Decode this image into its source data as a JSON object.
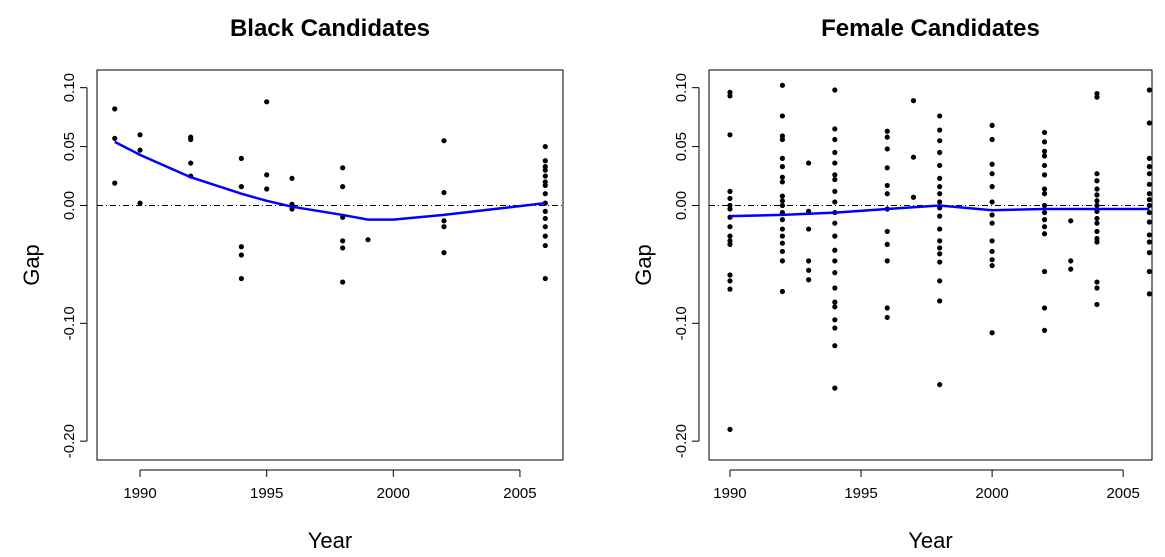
{
  "chart_data": [
    {
      "type": "scatter",
      "title": "Black Candidates",
      "xlabel": "Year",
      "ylabel": "Gap",
      "xlim": [
        1988.3,
        2006.7
      ],
      "ylim": [
        -0.216,
        0.115
      ],
      "xticks": [
        1990,
        1995,
        2000,
        2005
      ],
      "yticks": [
        {
          "value": 0.1,
          "label": "0.10"
        },
        {
          "value": 0.05,
          "label": "0.05"
        },
        {
          "value": 0,
          "label": "0.00"
        },
        {
          "value": -0.1,
          "label": "-0.10"
        },
        {
          "value": -0.2,
          "label": "-0.20"
        }
      ],
      "reference_line": 0,
      "series": [
        {
          "type": "scatter",
          "color": "#000000",
          "x": [
            1989,
            1989,
            1989,
            1990,
            1990,
            1990,
            1992,
            1992,
            1992,
            1992,
            1994,
            1994,
            1994,
            1994,
            1994,
            1995,
            1995,
            1995,
            1996,
            1996,
            1996,
            1998,
            1998,
            1998,
            1998,
            1998,
            1998,
            1999,
            2002,
            2002,
            2002,
            2002,
            2002,
            2006,
            2006,
            2006,
            2006,
            2006,
            2006,
            2006,
            2006,
            2006,
            2006,
            2006,
            2006,
            2006,
            2006,
            2006
          ],
          "values": [
            0.082,
            0.057,
            0.019,
            0.06,
            0.047,
            0.002,
            0.058,
            0.056,
            0.036,
            0.025,
            0.04,
            0.016,
            -0.035,
            -0.042,
            -0.062,
            0.088,
            0.026,
            0.014,
            0.023,
            0.001,
            -0.003,
            0.032,
            0.016,
            -0.01,
            -0.03,
            -0.036,
            -0.065,
            -0.029,
            0.055,
            0.011,
            -0.013,
            -0.018,
            -0.04,
            0.05,
            0.038,
            0.033,
            0.03,
            0.025,
            0.02,
            0.017,
            0.01,
            0.002,
            -0.005,
            -0.011,
            -0.018,
            -0.026,
            -0.034,
            -0.062
          ]
        },
        {
          "type": "line",
          "color": "#0000ff",
          "x": [
            1989,
            1990,
            1992,
            1994,
            1995,
            1996,
            1998,
            1999,
            2000,
            2002,
            2004,
            2006
          ],
          "values": [
            0.054,
            0.043,
            0.024,
            0.01,
            0.004,
            -0.001,
            -0.008,
            -0.012,
            -0.012,
            -0.008,
            -0.003,
            0.002
          ]
        }
      ]
    },
    {
      "type": "scatter",
      "title": "Female Candidates",
      "xlabel": "Year",
      "ylabel": "Gap",
      "xlim": [
        1989.2,
        2006.1
      ],
      "ylim": [
        -0.216,
        0.115
      ],
      "xticks": [
        1990,
        1995,
        2000,
        2005
      ],
      "yticks": [
        {
          "value": 0.1,
          "label": "0.10"
        },
        {
          "value": 0.05,
          "label": "0.05"
        },
        {
          "value": 0,
          "label": "0.00"
        },
        {
          "value": -0.1,
          "label": "-0.10"
        },
        {
          "value": -0.2,
          "label": "-0.20"
        }
      ],
      "reference_line": 0,
      "series": [
        {
          "type": "scatter",
          "color": "#000000",
          "x": [
            1990,
            1990,
            1990,
            1990,
            1990,
            1990,
            1990,
            1990,
            1990,
            1990,
            1990,
            1990,
            1990,
            1990,
            1990,
            1990,
            1992,
            1992,
            1992,
            1992,
            1992,
            1992,
            1992,
            1992,
            1992,
            1992,
            1992,
            1992,
            1992,
            1992,
            1992,
            1992,
            1992,
            1992,
            1992,
            1993,
            1993,
            1993,
            1993,
            1993,
            1993,
            1994,
            1994,
            1994,
            1994,
            1994,
            1994,
            1994,
            1994,
            1994,
            1994,
            1994,
            1994,
            1994,
            1994,
            1994,
            1994,
            1994,
            1994,
            1994,
            1994,
            1994,
            1994,
            1996,
            1996,
            1996,
            1996,
            1996,
            1996,
            1996,
            1996,
            1996,
            1996,
            1996,
            1996,
            1997,
            1997,
            1997,
            1998,
            1998,
            1998,
            1998,
            1998,
            1998,
            1998,
            1998,
            1998,
            1998,
            1998,
            1998,
            1998,
            1998,
            1998,
            1998,
            1998,
            1998,
            1998,
            2000,
            2000,
            2000,
            2000,
            2000,
            2000,
            2000,
            2000,
            2000,
            2000,
            2000,
            2000,
            2000,
            2002,
            2002,
            2002,
            2002,
            2002,
            2002,
            2002,
            2002,
            2002,
            2002,
            2002,
            2002,
            2002,
            2002,
            2002,
            2002,
            2003,
            2003,
            2003,
            2004,
            2004,
            2004,
            2004,
            2004,
            2004,
            2004,
            2004,
            2004,
            2004,
            2004,
            2004,
            2004,
            2004,
            2004,
            2004,
            2004,
            2006,
            2006,
            2006,
            2006,
            2006,
            2006,
            2006,
            2006,
            2006,
            2006,
            2006,
            2006,
            2006,
            2006,
            2006,
            2006
          ],
          "values": [
            0.096,
            0.093,
            0.06,
            0.012,
            0.006,
            0.0,
            -0.003,
            -0.01,
            -0.018,
            -0.026,
            -0.03,
            -0.033,
            -0.059,
            -0.064,
            -0.071,
            -0.19,
            0.102,
            0.076,
            0.059,
            0.056,
            0.04,
            0.033,
            0.024,
            0.02,
            0.008,
            0.004,
            0.0,
            -0.006,
            -0.012,
            -0.02,
            -0.026,
            -0.032,
            -0.039,
            -0.047,
            -0.073,
            0.036,
            -0.005,
            -0.02,
            -0.047,
            -0.055,
            -0.063,
            0.098,
            0.065,
            0.056,
            0.045,
            0.036,
            0.026,
            0.022,
            0.012,
            0.003,
            -0.006,
            -0.015,
            -0.026,
            -0.038,
            -0.047,
            -0.057,
            -0.07,
            -0.082,
            -0.086,
            -0.097,
            -0.104,
            -0.119,
            -0.155,
            0.063,
            0.058,
            0.048,
            0.032,
            0.017,
            0.01,
            -0.003,
            -0.022,
            -0.033,
            -0.047,
            -0.087,
            -0.095,
            0.089,
            0.041,
            0.007,
            0.076,
            0.064,
            0.055,
            0.045,
            0.034,
            0.023,
            0.016,
            0.01,
            0.003,
            -0.002,
            -0.009,
            -0.02,
            -0.03,
            -0.036,
            -0.041,
            -0.048,
            -0.064,
            -0.081,
            -0.152,
            0.068,
            0.056,
            0.035,
            0.027,
            0.016,
            0.003,
            -0.008,
            -0.015,
            -0.03,
            -0.039,
            -0.046,
            -0.051,
            -0.108,
            0.062,
            0.054,
            0.046,
            0.042,
            0.034,
            0.026,
            0.014,
            0.01,
            0.0,
            -0.006,
            -0.012,
            -0.018,
            -0.024,
            -0.056,
            -0.087,
            -0.106,
            -0.013,
            -0.047,
            -0.054,
            0.095,
            0.092,
            0.027,
            0.021,
            0.014,
            0.009,
            0.004,
            0.0,
            -0.005,
            -0.011,
            -0.015,
            -0.022,
            -0.028,
            -0.031,
            -0.065,
            -0.07,
            -0.084,
            0.098,
            0.07,
            0.04,
            0.033,
            0.027,
            0.018,
            0.01,
            0.005,
            0.0,
            -0.006,
            -0.014,
            -0.025,
            -0.031,
            -0.04,
            -0.056,
            -0.075
          ]
        },
        {
          "type": "line",
          "color": "#0000ff",
          "x": [
            1990,
            1992,
            1994,
            1996,
            1998,
            2000,
            2002,
            2004,
            2006
          ],
          "values": [
            -0.009,
            -0.008,
            -0.006,
            -0.003,
            0.0,
            -0.004,
            -0.003,
            -0.003,
            -0.003
          ]
        }
      ]
    }
  ]
}
